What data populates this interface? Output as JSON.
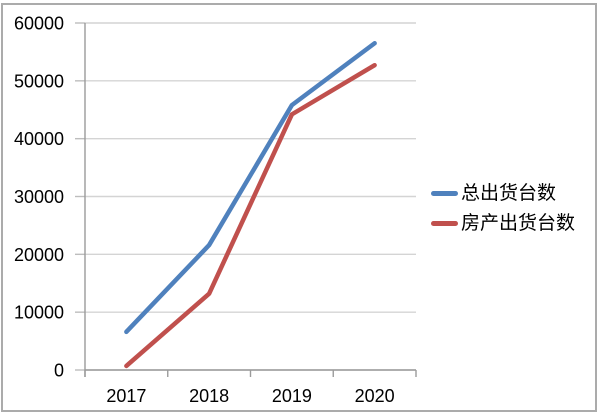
{
  "chart_data": {
    "type": "line",
    "title": "",
    "xlabel": "",
    "ylabel": "",
    "categories": [
      "2017",
      "2018",
      "2019",
      "2020"
    ],
    "series": [
      {
        "name": "总出货台数",
        "color": "#4F81BD",
        "values": [
          6600,
          21600,
          45800,
          56500
        ]
      },
      {
        "name": "房产出货台数",
        "color": "#C0504D",
        "values": [
          700,
          13200,
          44200,
          52700
        ]
      }
    ],
    "ylim": [
      0,
      60000
    ],
    "ytick_step": 10000,
    "ytick_labels": [
      "0",
      "10000",
      "20000",
      "30000",
      "40000",
      "50000",
      "60000"
    ],
    "grid": "horizontal-only",
    "legend_position": "right"
  },
  "colors": {
    "background": "#FFFFFF",
    "border": "#ABABAB",
    "gridline": "#D4D4D4",
    "axis": "#9B9B9B",
    "tick": "#BDBDBD",
    "text": "#000000"
  }
}
